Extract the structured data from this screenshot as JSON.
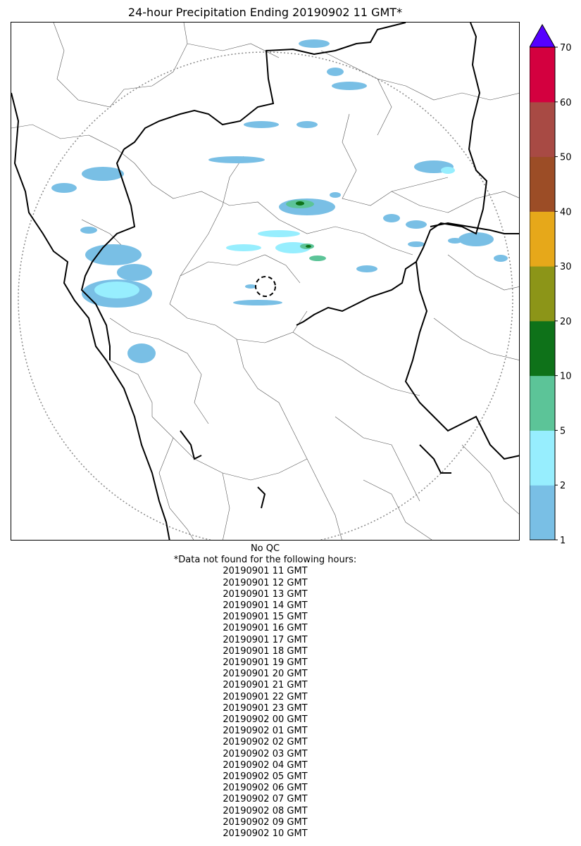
{
  "title": "24-hour Precipitation Ending 20190902 11 GMT*",
  "colorbar": {
    "bins": [
      {
        "from": 1,
        "to": 2,
        "color": "#79bfe5"
      },
      {
        "from": 2,
        "to": 5,
        "color": "#97eefe"
      },
      {
        "from": 5,
        "to": 10,
        "color": "#5cc498"
      },
      {
        "from": 10,
        "to": 20,
        "color": "#0e7219"
      },
      {
        "from": 20,
        "to": 30,
        "color": "#8c9518"
      },
      {
        "from": 30,
        "to": 40,
        "color": "#e6a81a"
      },
      {
        "from": 40,
        "to": 50,
        "color": "#9c4d26"
      },
      {
        "from": 50,
        "to": 60,
        "color": "#a84a44"
      },
      {
        "from": 60,
        "to": 70,
        "color": "#d3003f"
      }
    ],
    "extend_color": "#5500ff",
    "tick_labels": [
      "1",
      "2",
      "5",
      "10",
      "20",
      "30",
      "40",
      "50",
      "60",
      "70"
    ]
  },
  "notes": {
    "qc": "No QC",
    "missing_header": "*Data not found for the following hours:",
    "missing_hours": [
      "20190901 11 GMT",
      "20190901 12 GMT",
      "20190901 13 GMT",
      "20190901 14 GMT",
      "20190901 15 GMT",
      "20190901 16 GMT",
      "20190901 17 GMT",
      "20190901 18 GMT",
      "20190901 19 GMT",
      "20190901 20 GMT",
      "20190901 21 GMT",
      "20190901 22 GMT",
      "20190901 23 GMT",
      "20190902 00 GMT",
      "20190902 01 GMT",
      "20190902 02 GMT",
      "20190902 03 GMT",
      "20190902 04 GMT",
      "20190902 05 GMT",
      "20190902 06 GMT",
      "20190902 07 GMT",
      "20190902 08 GMT",
      "20190902 09 GMT",
      "20190902 10 GMT"
    ]
  }
}
